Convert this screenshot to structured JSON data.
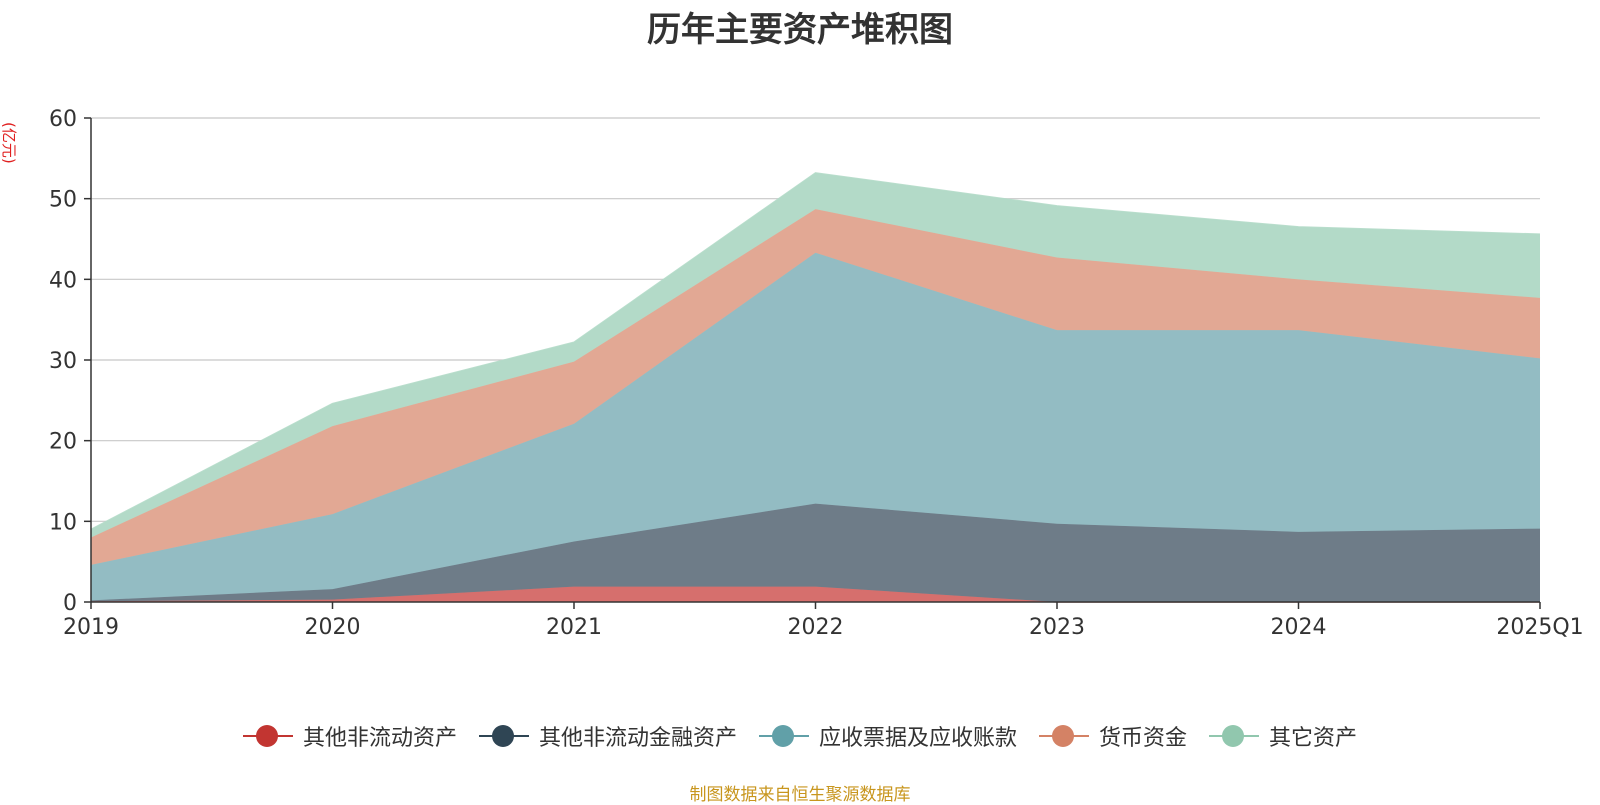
{
  "chart_data": {
    "type": "area",
    "title": "历年主要资产堆积图",
    "ylabel": "(亿元)",
    "xlabel": "",
    "categories": [
      "2019",
      "2020",
      "2021",
      "2022",
      "2023",
      "2024",
      "2025Q1"
    ],
    "ylim": [
      0,
      60
    ],
    "yticks": [
      0,
      10,
      20,
      30,
      40,
      50,
      60
    ],
    "stacked": true,
    "series": [
      {
        "name": "其他非流动资产",
        "color": "#c23531",
        "fill": "#d66f6d",
        "values": [
          0.1,
          0.3,
          1.9,
          1.9,
          0.0,
          0.0,
          0.0
        ]
      },
      {
        "name": "其他非流动金融资产",
        "color": "#2f4554",
        "fill": "#6e7c88",
        "values": [
          0.1,
          1.3,
          5.6,
          10.3,
          9.7,
          8.7,
          9.1
        ]
      },
      {
        "name": "应收票据及应收账款",
        "color": "#61a0a8",
        "fill": "#93bcc3",
        "values": [
          4.4,
          9.3,
          14.6,
          31.1,
          24.0,
          25.0,
          21.1
        ]
      },
      {
        "name": "货币资金",
        "color": "#d48265",
        "fill": "#e2a894",
        "values": [
          3.4,
          10.9,
          7.7,
          5.4,
          9.0,
          6.3,
          7.5
        ]
      },
      {
        "name": "其它资产",
        "color": "#91c7ae",
        "fill": "#b3dac8",
        "values": [
          1.0,
          2.8,
          2.4,
          4.5,
          6.4,
          6.5,
          7.9
        ]
      }
    ]
  },
  "footer": {
    "source": "制图数据来自恒生聚源数据库"
  }
}
